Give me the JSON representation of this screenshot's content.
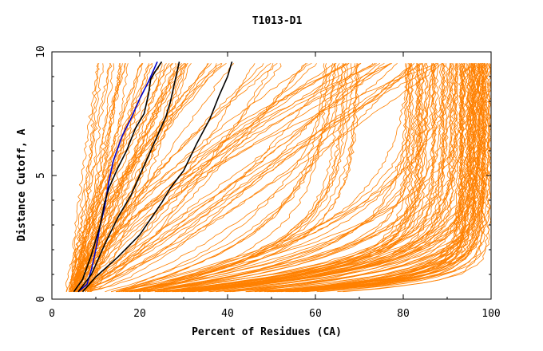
{
  "chart_data": {
    "type": "line",
    "title": "T1013-D1",
    "xlabel": "Percent of Residues (CA)",
    "ylabel": "Distance Cutoff, A",
    "xlim": [
      0,
      100
    ],
    "ylim": [
      0,
      10
    ],
    "xticks": [
      "0",
      "20",
      "40",
      "60",
      "80",
      "100"
    ],
    "yticks": [
      "0",
      "5",
      "10"
    ],
    "colors": {
      "other": "#ff8000",
      "highlight_black": "#000000",
      "highlight_blue": "#0000cc",
      "frame": "#000000"
    },
    "series": [
      {
        "name": "highlight-blue",
        "color": "#0000cc",
        "x": [
          6,
          8,
          9,
          10,
          11,
          12,
          13,
          14,
          15,
          16,
          18,
          20,
          22,
          24
        ],
        "y": [
          0.3,
          0.6,
          1.2,
          2.0,
          3.0,
          3.7,
          4.8,
          5.6,
          6.1,
          6.6,
          7.3,
          8.1,
          8.8,
          9.6
        ]
      },
      {
        "name": "highlight-black-1",
        "color": "#000000",
        "x": [
          5,
          7,
          9,
          11,
          12,
          13,
          15,
          17,
          19,
          21,
          22,
          22.5,
          23.5,
          25
        ],
        "y": [
          0.3,
          0.8,
          1.8,
          3.0,
          3.9,
          4.5,
          5.3,
          6.0,
          6.9,
          7.5,
          8.3,
          8.9,
          9.2,
          9.6
        ]
      },
      {
        "name": "highlight-black-2",
        "color": "#000000",
        "x": [
          6,
          9,
          12,
          15,
          18,
          20,
          22,
          24,
          26,
          27,
          28,
          29
        ],
        "y": [
          0.3,
          1.0,
          2.2,
          3.3,
          4.2,
          5.0,
          5.8,
          6.6,
          7.4,
          8.0,
          8.8,
          9.6
        ]
      },
      {
        "name": "highlight-black-3",
        "color": "#000000",
        "x": [
          7,
          10,
          15,
          20,
          25,
          27,
          30,
          33,
          36,
          38,
          40,
          41
        ],
        "y": [
          0.3,
          0.9,
          1.7,
          2.6,
          3.9,
          4.5,
          5.2,
          6.3,
          7.3,
          8.2,
          9.0,
          9.6
        ]
      },
      {
        "name": "other-models",
        "color": "#ff8000",
        "count": 180,
        "note": "bundle of orange model curves spanning 3-100% of residues"
      }
    ]
  }
}
